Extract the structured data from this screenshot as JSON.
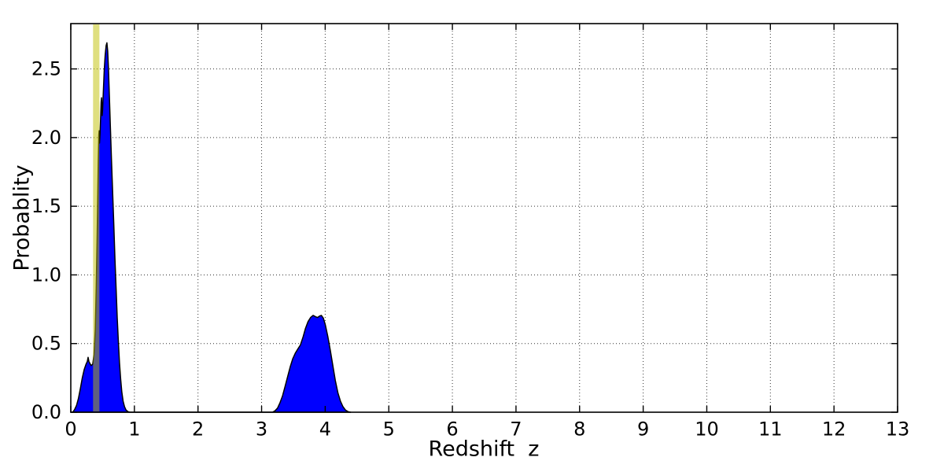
{
  "figure": {
    "background_color": "#ffffff",
    "axis_color": "#000000",
    "grid_color": "#333333",
    "tick_label_color": "#000000"
  },
  "chart_data": {
    "type": "area",
    "title": "",
    "xlabel": "Redshift  z",
    "ylabel": "Probablity",
    "xlim": [
      0,
      13
    ],
    "ylim": [
      0,
      2.83
    ],
    "xticks": [
      0,
      1,
      2,
      3,
      4,
      5,
      6,
      7,
      8,
      9,
      10,
      11,
      12,
      13
    ],
    "xtick_labels": [
      "0",
      "1",
      "2",
      "3",
      "4",
      "5",
      "6",
      "7",
      "8",
      "9",
      "10",
      "11",
      "12",
      "13"
    ],
    "yticks": [
      0.0,
      0.5,
      1.0,
      1.5,
      2.0,
      2.5
    ],
    "ytick_labels": [
      "0.0",
      "0.5",
      "1.0",
      "1.5",
      "2.0",
      "2.5"
    ],
    "grid": true,
    "grid_style": "dotted",
    "legend_position": "none",
    "series": [
      {
        "name": "redshift-probability-density",
        "type": "area",
        "fill_color": "#0000ff",
        "edge_color": "#000000",
        "points": [
          [
            0.0,
            0.0
          ],
          [
            0.03,
            0.0
          ],
          [
            0.06,
            0.02
          ],
          [
            0.09,
            0.05
          ],
          [
            0.12,
            0.1
          ],
          [
            0.15,
            0.17
          ],
          [
            0.18,
            0.25
          ],
          [
            0.21,
            0.31
          ],
          [
            0.24,
            0.35
          ],
          [
            0.26,
            0.37
          ],
          [
            0.272,
            0.4
          ],
          [
            0.285,
            0.37
          ],
          [
            0.3,
            0.355
          ],
          [
            0.32,
            0.34
          ],
          [
            0.345,
            0.35
          ],
          [
            0.365,
            0.42
          ],
          [
            0.385,
            0.6
          ],
          [
            0.4,
            0.9
          ],
          [
            0.413,
            1.25
          ],
          [
            0.423,
            1.55
          ],
          [
            0.432,
            1.82
          ],
          [
            0.44,
            2.02
          ],
          [
            0.445,
            2.05
          ],
          [
            0.452,
            1.96
          ],
          [
            0.46,
            2.03
          ],
          [
            0.47,
            2.16
          ],
          [
            0.478,
            2.26
          ],
          [
            0.484,
            2.29
          ],
          [
            0.492,
            2.16
          ],
          [
            0.5,
            2.2
          ],
          [
            0.512,
            2.34
          ],
          [
            0.526,
            2.49
          ],
          [
            0.54,
            2.6
          ],
          [
            0.555,
            2.67
          ],
          [
            0.568,
            2.69
          ],
          [
            0.58,
            2.63
          ],
          [
            0.592,
            2.5
          ],
          [
            0.606,
            2.31
          ],
          [
            0.622,
            2.08
          ],
          [
            0.64,
            1.84
          ],
          [
            0.658,
            1.6
          ],
          [
            0.676,
            1.36
          ],
          [
            0.694,
            1.12
          ],
          [
            0.712,
            0.9
          ],
          [
            0.73,
            0.69
          ],
          [
            0.748,
            0.51
          ],
          [
            0.766,
            0.36
          ],
          [
            0.784,
            0.24
          ],
          [
            0.802,
            0.15
          ],
          [
            0.822,
            0.08
          ],
          [
            0.845,
            0.04
          ],
          [
            0.87,
            0.015
          ],
          [
            0.9,
            0.004
          ],
          [
            0.93,
            0.0
          ],
          [
            3.17,
            0.0
          ],
          [
            3.21,
            0.01
          ],
          [
            3.25,
            0.03
          ],
          [
            3.29,
            0.07
          ],
          [
            3.33,
            0.12
          ],
          [
            3.37,
            0.19
          ],
          [
            3.41,
            0.26
          ],
          [
            3.45,
            0.33
          ],
          [
            3.49,
            0.39
          ],
          [
            3.53,
            0.43
          ],
          [
            3.57,
            0.46
          ],
          [
            3.61,
            0.49
          ],
          [
            3.65,
            0.545
          ],
          [
            3.69,
            0.61
          ],
          [
            3.73,
            0.66
          ],
          [
            3.77,
            0.69
          ],
          [
            3.81,
            0.705
          ],
          [
            3.85,
            0.695
          ],
          [
            3.88,
            0.69
          ],
          [
            3.91,
            0.7
          ],
          [
            3.94,
            0.705
          ],
          [
            3.97,
            0.685
          ],
          [
            4.0,
            0.64
          ],
          [
            4.04,
            0.555
          ],
          [
            4.08,
            0.45
          ],
          [
            4.12,
            0.34
          ],
          [
            4.16,
            0.23
          ],
          [
            4.2,
            0.14
          ],
          [
            4.24,
            0.08
          ],
          [
            4.28,
            0.04
          ],
          [
            4.32,
            0.015
          ],
          [
            4.36,
            0.004
          ],
          [
            4.4,
            0.0
          ]
        ]
      }
    ],
    "annotations": [
      {
        "type": "vspan",
        "name": "highlight-band",
        "x0": 0.35,
        "x1": 0.45,
        "color": "#bfbf00",
        "alpha": 0.5
      }
    ]
  }
}
